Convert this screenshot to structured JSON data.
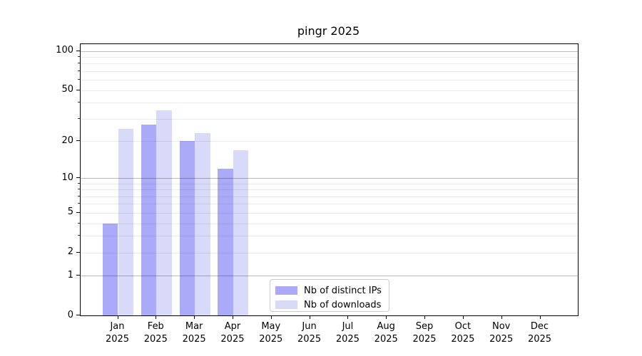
{
  "chart_data": {
    "type": "bar",
    "title": "pingr 2025",
    "categories": [
      "Jan",
      "Feb",
      "Mar",
      "Apr",
      "May",
      "Jun",
      "Jul",
      "Aug",
      "Sep",
      "Oct",
      "Nov",
      "Dec"
    ],
    "x_tick_year": "2025",
    "series": [
      {
        "name": "Nb of distinct IPs",
        "color": "#aaaaf9",
        "values": [
          4,
          27,
          20,
          12,
          0,
          0,
          0,
          0,
          0,
          0,
          0,
          0
        ]
      },
      {
        "name": "Nb of downloads",
        "color": "#d9d9fa",
        "values": [
          25,
          35,
          23,
          17,
          0,
          0,
          0,
          0,
          0,
          0,
          0,
          0
        ]
      }
    ],
    "yscale": "log1p",
    "ylim": [
      0,
      113
    ],
    "xlabel": "",
    "ylabel": "",
    "y_ticks": [
      0,
      1,
      2,
      5,
      10,
      20,
      50,
      100
    ],
    "gridlines": {
      "major": [
        1,
        10,
        100
      ],
      "minor": [
        2,
        3,
        4,
        5,
        6,
        7,
        8,
        9,
        20,
        30,
        40,
        50,
        60,
        70,
        80,
        90
      ]
    },
    "grid": true,
    "legend_position": "lower center"
  },
  "colors": {
    "series_ips": "#aaaaf9",
    "series_downloads": "#d9d9fa",
    "spine": "#000000",
    "legend_border": "#cccccc"
  }
}
